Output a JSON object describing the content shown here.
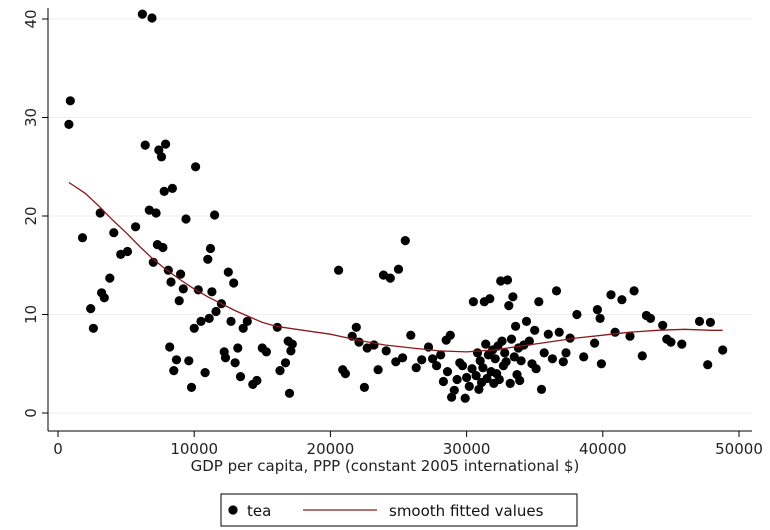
{
  "chart_data": {
    "type": "scatter",
    "title": "",
    "xlabel": "GDP per capita, PPP (constant 2005 international $)",
    "ylabel": "",
    "xlim": [
      0,
      50000
    ],
    "ylim": [
      0,
      41
    ],
    "xticks": [
      0,
      10000,
      20000,
      30000,
      40000,
      50000
    ],
    "xtick_labels": [
      "0",
      "10000",
      "20000",
      "30000",
      "40000",
      "50000"
    ],
    "yticks": [
      0,
      10,
      20,
      30,
      40
    ],
    "ytick_labels": [
      "0",
      "10",
      "20",
      "30",
      "40"
    ],
    "grid": "horizontal",
    "legend_position": "bottom",
    "colors": {
      "points": "#000000",
      "fit": "#8b1a1a",
      "grid": "#eeeeee",
      "axis": "#000000"
    },
    "series": [
      {
        "name": "tea",
        "kind": "scatter",
        "points": [
          [
            800,
            29.3
          ],
          [
            900,
            31.7
          ],
          [
            1800,
            17.8
          ],
          [
            2400,
            10.6
          ],
          [
            2600,
            8.6
          ],
          [
            3100,
            20.3
          ],
          [
            3200,
            12.2
          ],
          [
            3400,
            11.7
          ],
          [
            3800,
            13.7
          ],
          [
            4100,
            18.3
          ],
          [
            4600,
            16.1
          ],
          [
            5100,
            16.4
          ],
          [
            5700,
            18.9
          ],
          [
            6200,
            40.5
          ],
          [
            6400,
            27.2
          ],
          [
            6900,
            40.1
          ],
          [
            6700,
            20.6
          ],
          [
            7000,
            15.3
          ],
          [
            7200,
            20.3
          ],
          [
            7300,
            17.1
          ],
          [
            7400,
            26.7
          ],
          [
            7600,
            26.0
          ],
          [
            7800,
            22.5
          ],
          [
            7900,
            27.3
          ],
          [
            7700,
            16.8
          ],
          [
            8100,
            14.5
          ],
          [
            8200,
            6.7
          ],
          [
            8300,
            13.3
          ],
          [
            8400,
            22.8
          ],
          [
            8500,
            4.3
          ],
          [
            8700,
            5.4
          ],
          [
            8900,
            11.4
          ],
          [
            9000,
            14.1
          ],
          [
            9200,
            12.6
          ],
          [
            9400,
            19.7
          ],
          [
            9600,
            5.3
          ],
          [
            9800,
            2.6
          ],
          [
            10000,
            8.6
          ],
          [
            10100,
            25.0
          ],
          [
            10300,
            12.5
          ],
          [
            10500,
            9.3
          ],
          [
            10800,
            4.1
          ],
          [
            11000,
            15.6
          ],
          [
            11100,
            9.6
          ],
          [
            11200,
            16.7
          ],
          [
            11300,
            12.3
          ],
          [
            11500,
            20.1
          ],
          [
            11600,
            10.3
          ],
          [
            12000,
            11.1
          ],
          [
            12200,
            6.2
          ],
          [
            12300,
            5.6
          ],
          [
            12500,
            14.3
          ],
          [
            12700,
            9.3
          ],
          [
            12900,
            13.2
          ],
          [
            13000,
            5.1
          ],
          [
            13200,
            6.6
          ],
          [
            13400,
            3.7
          ],
          [
            13600,
            8.6
          ],
          [
            13900,
            9.3
          ],
          [
            14300,
            2.9
          ],
          [
            14600,
            3.3
          ],
          [
            15000,
            6.6
          ],
          [
            15300,
            6.2
          ],
          [
            16100,
            8.7
          ],
          [
            16300,
            4.3
          ],
          [
            16700,
            5.1
          ],
          [
            16900,
            7.3
          ],
          [
            17000,
            2.0
          ],
          [
            17100,
            6.3
          ],
          [
            17200,
            7.0
          ],
          [
            20600,
            14.5
          ],
          [
            20900,
            4.4
          ],
          [
            21100,
            4.0
          ],
          [
            21600,
            7.8
          ],
          [
            21900,
            8.7
          ],
          [
            22100,
            7.2
          ],
          [
            22500,
            2.6
          ],
          [
            22700,
            6.6
          ],
          [
            23200,
            6.9
          ],
          [
            23500,
            4.4
          ],
          [
            23900,
            14.0
          ],
          [
            24100,
            6.3
          ],
          [
            24400,
            13.7
          ],
          [
            24800,
            5.2
          ],
          [
            25000,
            14.6
          ],
          [
            25300,
            5.6
          ],
          [
            25500,
            17.5
          ],
          [
            25900,
            7.9
          ],
          [
            26300,
            4.6
          ],
          [
            26700,
            5.4
          ],
          [
            27200,
            6.7
          ],
          [
            27500,
            5.5
          ],
          [
            27800,
            4.8
          ],
          [
            28100,
            5.9
          ],
          [
            28300,
            3.2
          ],
          [
            28500,
            7.4
          ],
          [
            28600,
            4.2
          ],
          [
            28800,
            7.9
          ],
          [
            28900,
            1.6
          ],
          [
            29100,
            2.3
          ],
          [
            29300,
            3.4
          ],
          [
            29500,
            5.1
          ],
          [
            29700,
            4.8
          ],
          [
            29900,
            1.5
          ],
          [
            30000,
            3.6
          ],
          [
            30200,
            2.7
          ],
          [
            30400,
            4.5
          ],
          [
            30500,
            11.3
          ],
          [
            30700,
            3.8
          ],
          [
            30800,
            6.1
          ],
          [
            30900,
            2.4
          ],
          [
            31000,
            5.3
          ],
          [
            31100,
            3.1
          ],
          [
            31200,
            4.6
          ],
          [
            31300,
            11.3
          ],
          [
            31400,
            7.0
          ],
          [
            31500,
            3.5
          ],
          [
            31600,
            5.9
          ],
          [
            31700,
            11.6
          ],
          [
            31800,
            4.2
          ],
          [
            31900,
            6.4
          ],
          [
            32000,
            3.0
          ],
          [
            32100,
            5.5
          ],
          [
            32200,
            4.0
          ],
          [
            32300,
            6.8
          ],
          [
            32400,
            3.4
          ],
          [
            32500,
            13.4
          ],
          [
            32600,
            7.3
          ],
          [
            32700,
            4.8
          ],
          [
            32800,
            6.1
          ],
          [
            32900,
            5.2
          ],
          [
            33000,
            13.5
          ],
          [
            33100,
            10.9
          ],
          [
            33200,
            3.0
          ],
          [
            33300,
            7.5
          ],
          [
            33400,
            11.8
          ],
          [
            33500,
            5.7
          ],
          [
            33600,
            8.8
          ],
          [
            33700,
            3.9
          ],
          [
            33800,
            6.6
          ],
          [
            33900,
            3.3
          ],
          [
            34000,
            5.3
          ],
          [
            34200,
            6.9
          ],
          [
            34400,
            9.3
          ],
          [
            34600,
            7.3
          ],
          [
            34800,
            5.0
          ],
          [
            35000,
            8.4
          ],
          [
            35100,
            4.5
          ],
          [
            35300,
            11.3
          ],
          [
            35500,
            2.4
          ],
          [
            35700,
            6.1
          ],
          [
            36000,
            8.0
          ],
          [
            36300,
            5.5
          ],
          [
            36600,
            12.4
          ],
          [
            36800,
            8.2
          ],
          [
            37100,
            5.2
          ],
          [
            37300,
            6.1
          ],
          [
            37600,
            7.6
          ],
          [
            38100,
            10.0
          ],
          [
            38600,
            5.7
          ],
          [
            39400,
            7.1
          ],
          [
            39600,
            10.5
          ],
          [
            39800,
            9.6
          ],
          [
            39900,
            5.0
          ],
          [
            40600,
            12.0
          ],
          [
            40900,
            8.2
          ],
          [
            41400,
            11.5
          ],
          [
            42000,
            7.8
          ],
          [
            42300,
            12.4
          ],
          [
            42900,
            5.8
          ],
          [
            43200,
            9.9
          ],
          [
            43500,
            9.6
          ],
          [
            44400,
            8.9
          ],
          [
            44700,
            7.5
          ],
          [
            45000,
            7.2
          ],
          [
            45800,
            7.0
          ],
          [
            47100,
            9.3
          ],
          [
            47700,
            4.9
          ],
          [
            47900,
            9.2
          ],
          [
            48800,
            6.4
          ]
        ]
      },
      {
        "name": "smooth fitted values",
        "kind": "line",
        "points": [
          [
            800,
            23.4
          ],
          [
            2000,
            22.3
          ],
          [
            3000,
            21.0
          ],
          [
            4000,
            19.6
          ],
          [
            5000,
            18.3
          ],
          [
            6000,
            16.9
          ],
          [
            7000,
            15.6
          ],
          [
            8000,
            14.5
          ],
          [
            9000,
            13.5
          ],
          [
            10000,
            12.6
          ],
          [
            11000,
            11.8
          ],
          [
            12000,
            11.1
          ],
          [
            13000,
            10.4
          ],
          [
            14000,
            9.8
          ],
          [
            15000,
            9.2
          ],
          [
            16000,
            8.8
          ],
          [
            17000,
            8.6
          ],
          [
            18000,
            8.4
          ],
          [
            20000,
            8.0
          ],
          [
            22000,
            7.4
          ],
          [
            24000,
            6.9
          ],
          [
            26000,
            6.6
          ],
          [
            28000,
            6.3
          ],
          [
            30000,
            6.2
          ],
          [
            32000,
            6.4
          ],
          [
            34000,
            6.8
          ],
          [
            36000,
            7.2
          ],
          [
            38000,
            7.6
          ],
          [
            40000,
            7.9
          ],
          [
            42000,
            8.2
          ],
          [
            44000,
            8.4
          ],
          [
            46000,
            8.5
          ],
          [
            48000,
            8.4
          ],
          [
            48800,
            8.4
          ]
        ]
      }
    ],
    "legend": {
      "marker_label": "tea",
      "line_label": "smooth fitted values"
    }
  }
}
